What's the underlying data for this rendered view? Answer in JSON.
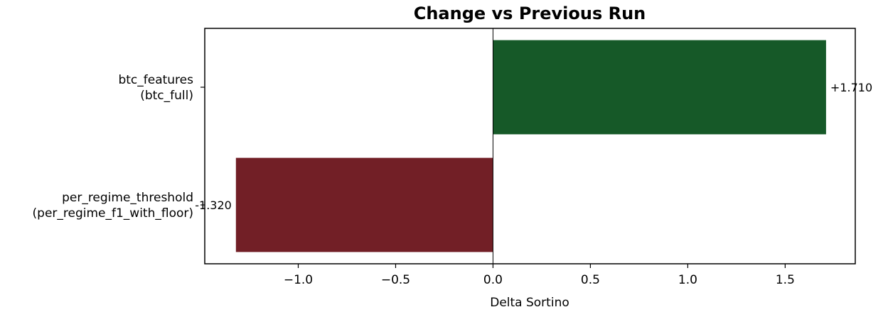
{
  "chart_data": {
    "type": "bar",
    "orientation": "horizontal",
    "title": "Change vs Previous Run",
    "xlabel": "Delta Sortino",
    "ylabel": "",
    "categories": [
      [
        "btc_features",
        "(btc_full)"
      ],
      [
        "per_regime_threshold",
        "(per_regime_f1_with_floor)"
      ]
    ],
    "values": [
      1.71,
      -1.32
    ],
    "data_labels": [
      "+1.710",
      "-1.320"
    ],
    "xlim": [
      -1.48,
      1.86
    ],
    "xticks": [
      -1.0,
      -0.5,
      0.0,
      0.5,
      1.0,
      1.5
    ],
    "xtick_labels": [
      "−1.0",
      "−0.5",
      "0.0",
      "0.5",
      "1.0",
      "1.5"
    ],
    "bar_colors": [
      "#165928",
      "#721f26"
    ],
    "zero_line": true,
    "grid": false,
    "legend": "none"
  }
}
